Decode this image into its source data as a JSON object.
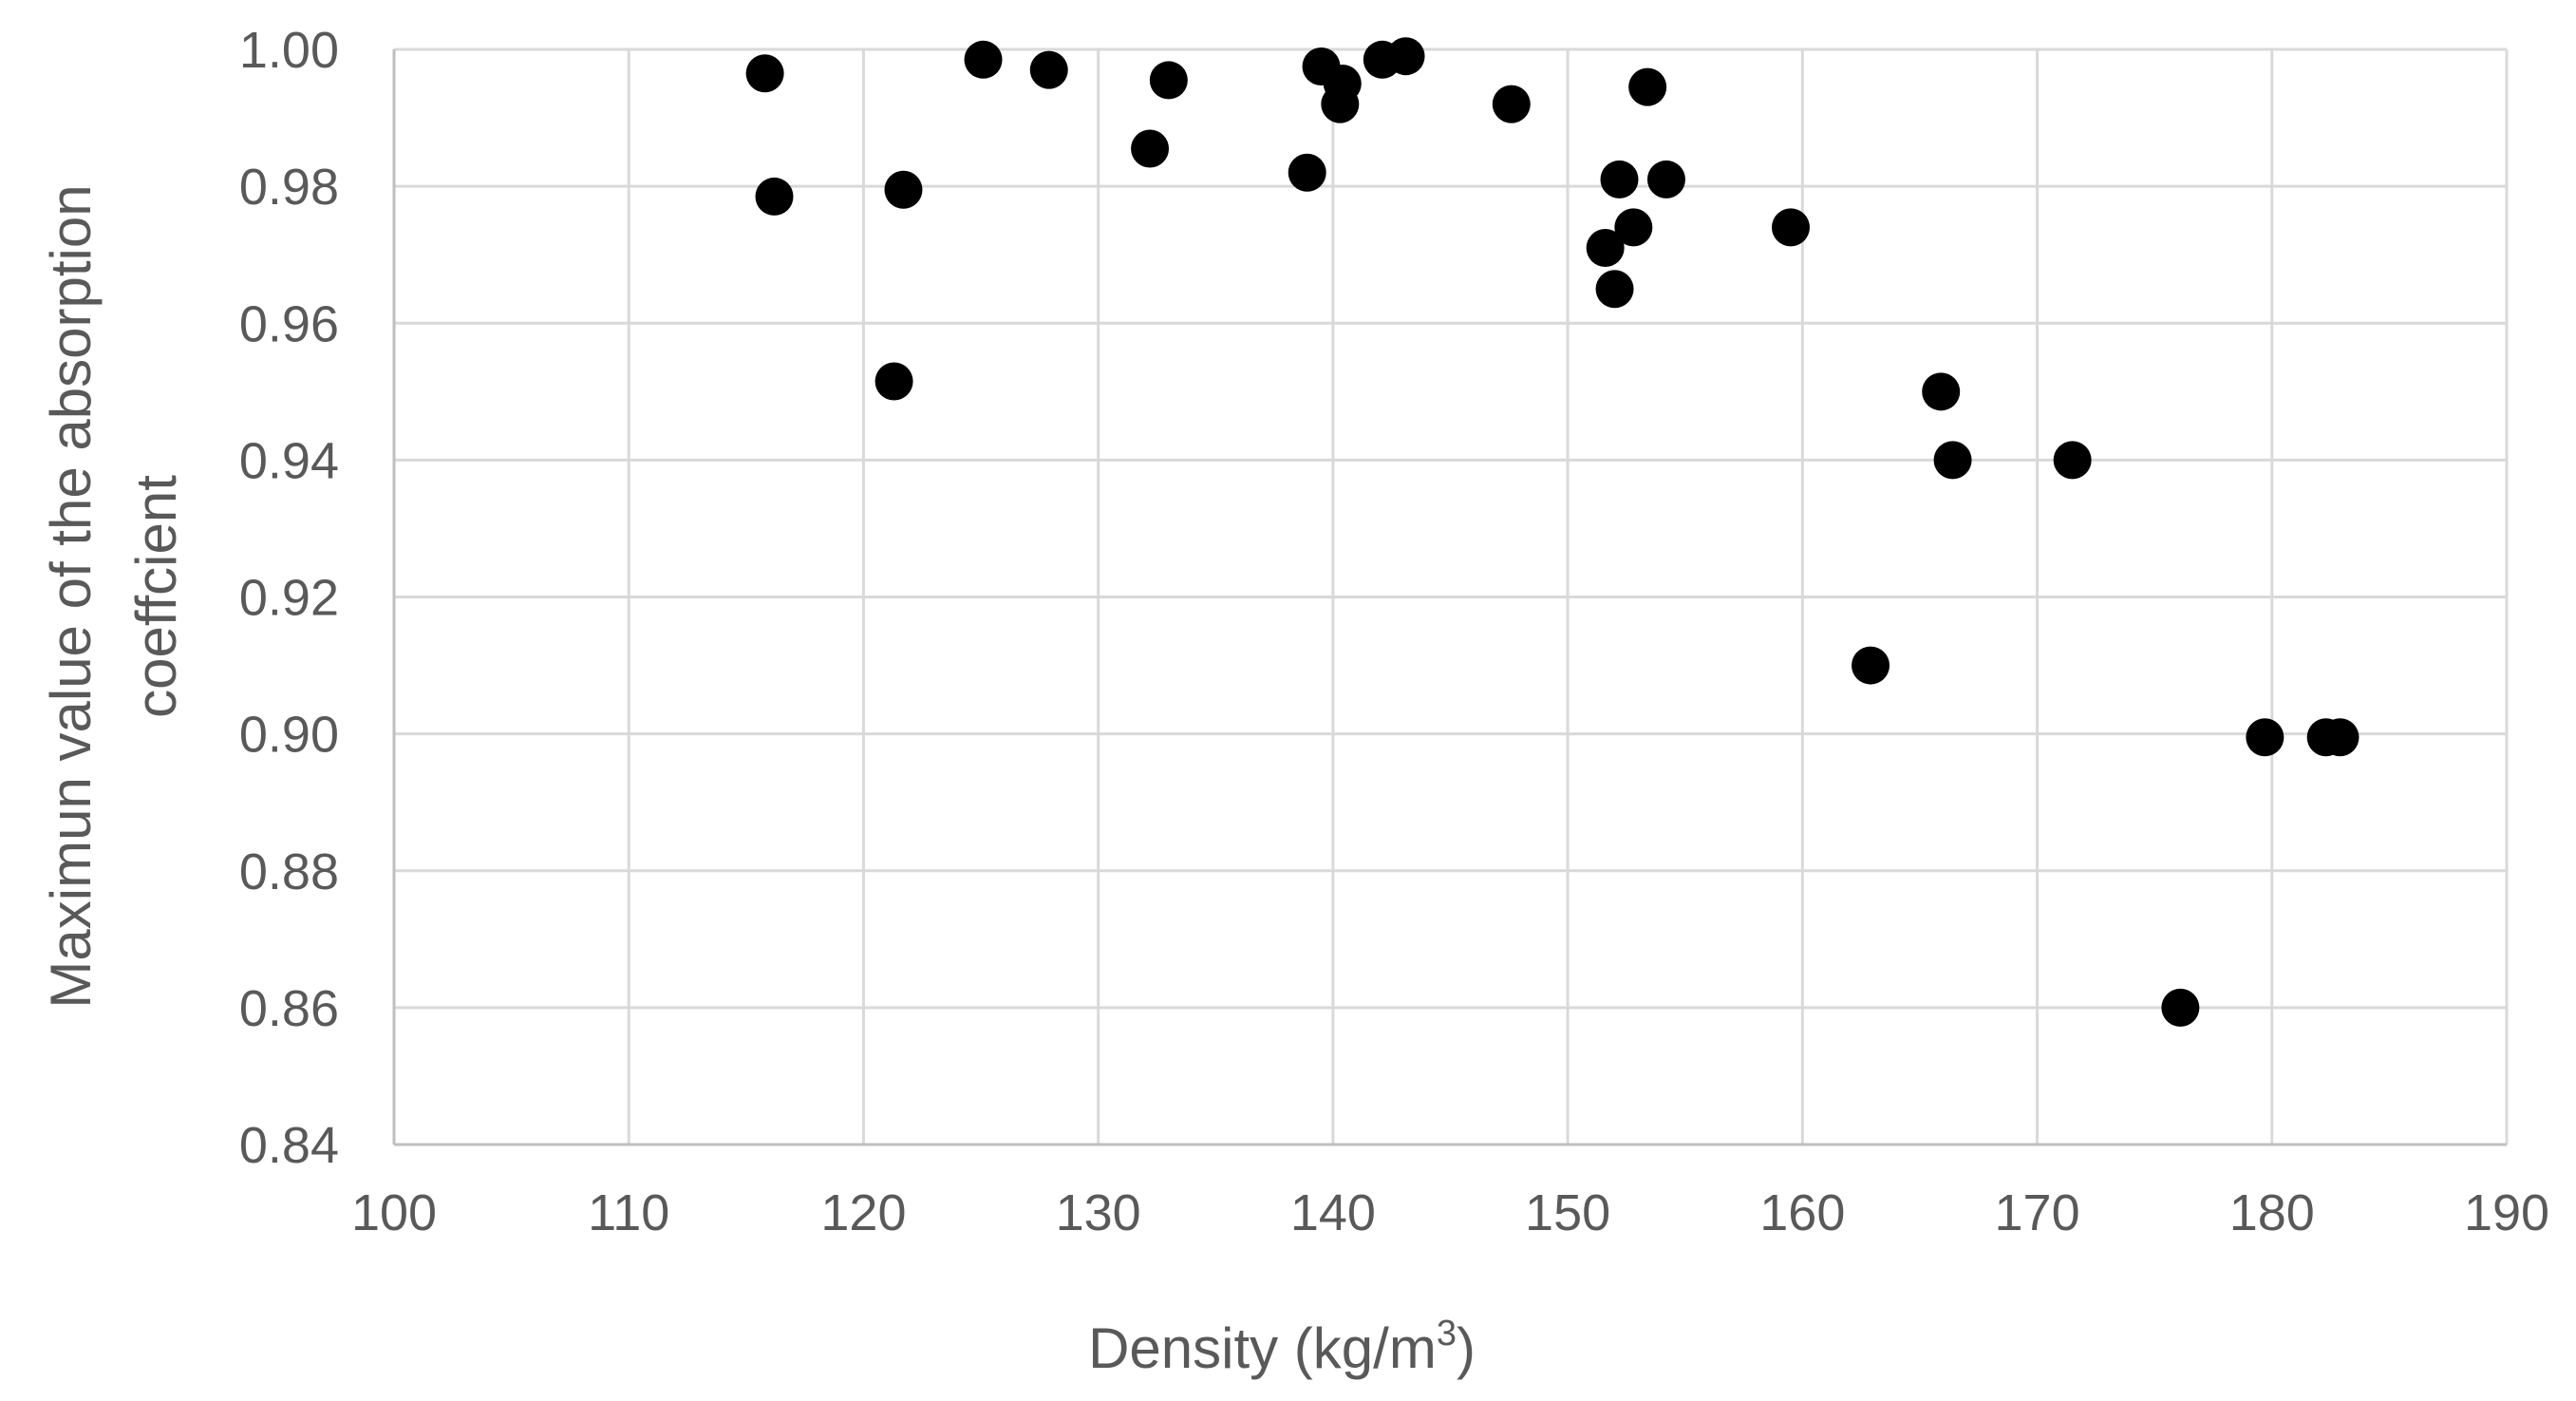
{
  "chart_data": {
    "type": "scatter",
    "xlabel": "Density (kg/m³)",
    "xlabel_base": "Density (kg/m",
    "xlabel_sup": "3",
    "xlabel_close": ")",
    "ylabel_lines": [
      "Maximun value of the absorption",
      "coeffcient"
    ],
    "xlim": [
      100,
      190
    ],
    "ylim": [
      0.84,
      1.0
    ],
    "xticks": [
      100,
      110,
      120,
      130,
      140,
      150,
      160,
      170,
      180,
      190
    ],
    "yticks": [
      "0.84",
      "0.86",
      "0.88",
      "0.90",
      "0.92",
      "0.94",
      "0.96",
      "0.98",
      "1.00"
    ],
    "grid": true,
    "legend": "none",
    "marker_color": "#000000",
    "points": [
      {
        "x": 115.8,
        "y": 0.9965
      },
      {
        "x": 116.2,
        "y": 0.9785
      },
      {
        "x": 121.3,
        "y": 0.9515
      },
      {
        "x": 121.7,
        "y": 0.9795
      },
      {
        "x": 125.1,
        "y": 0.9985
      },
      {
        "x": 127.9,
        "y": 0.997
      },
      {
        "x": 132.2,
        "y": 0.9855
      },
      {
        "x": 133.0,
        "y": 0.9955
      },
      {
        "x": 138.9,
        "y": 0.982
      },
      {
        "x": 139.5,
        "y": 0.9975
      },
      {
        "x": 140.4,
        "y": 0.995
      },
      {
        "x": 140.3,
        "y": 0.992
      },
      {
        "x": 142.1,
        "y": 0.9985
      },
      {
        "x": 143.1,
        "y": 0.999
      },
      {
        "x": 147.6,
        "y": 0.992
      },
      {
        "x": 151.6,
        "y": 0.971
      },
      {
        "x": 152.2,
        "y": 0.981
      },
      {
        "x": 152.0,
        "y": 0.965
      },
      {
        "x": 152.8,
        "y": 0.974
      },
      {
        "x": 153.4,
        "y": 0.9945
      },
      {
        "x": 154.2,
        "y": 0.981
      },
      {
        "x": 159.5,
        "y": 0.974
      },
      {
        "x": 162.9,
        "y": 0.91
      },
      {
        "x": 165.9,
        "y": 0.95
      },
      {
        "x": 166.4,
        "y": 0.94
      },
      {
        "x": 171.5,
        "y": 0.94
      },
      {
        "x": 176.1,
        "y": 0.86
      },
      {
        "x": 179.7,
        "y": 0.8995
      },
      {
        "x": 182.3,
        "y": 0.8995
      },
      {
        "x": 182.9,
        "y": 0.8995
      }
    ]
  }
}
